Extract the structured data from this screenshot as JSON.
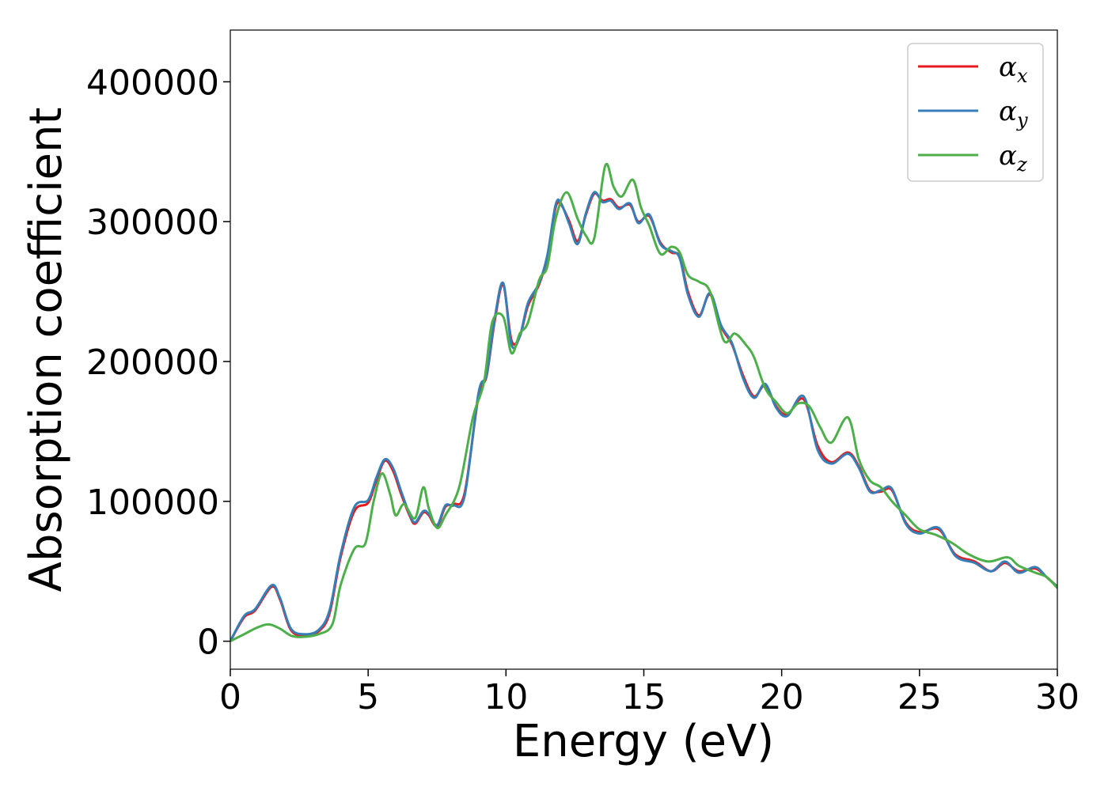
{
  "chart_data": {
    "type": "line",
    "xlabel": "Energy (eV)",
    "ylabel": "Absorption coefficient",
    "xlim": [
      0,
      30
    ],
    "ylim": [
      -20000,
      437000
    ],
    "xticks": [
      0,
      5,
      10,
      15,
      20,
      25,
      30
    ],
    "yticks": [
      0,
      100000,
      200000,
      300000,
      400000
    ],
    "grid": false,
    "legend_position": "top-right",
    "series": [
      {
        "name": "αx",
        "base": "α",
        "sub": "x",
        "color": "#e41a1c",
        "points": [
          [
            0,
            0
          ],
          [
            0.5,
            17000
          ],
          [
            0.9,
            22000
          ],
          [
            1.5,
            39000
          ],
          [
            1.8,
            30000
          ],
          [
            2.2,
            8000
          ],
          [
            2.7,
            4000
          ],
          [
            3.2,
            7000
          ],
          [
            3.6,
            20000
          ],
          [
            4.0,
            60000
          ],
          [
            4.5,
            93000
          ],
          [
            5.0,
            99000
          ],
          [
            5.3,
            115000
          ],
          [
            5.6,
            129000
          ],
          [
            5.9,
            122000
          ],
          [
            6.2,
            105000
          ],
          [
            6.5,
            90000
          ],
          [
            6.7,
            84000
          ],
          [
            7.0,
            92000
          ],
          [
            7.2,
            90000
          ],
          [
            7.5,
            82000
          ],
          [
            7.8,
            96000
          ],
          [
            8.1,
            98000
          ],
          [
            8.5,
            106000
          ],
          [
            9.0,
            175000
          ],
          [
            9.3,
            190000
          ],
          [
            9.6,
            230000
          ],
          [
            9.9,
            255000
          ],
          [
            10.2,
            215000
          ],
          [
            10.5,
            218000
          ],
          [
            10.8,
            240000
          ],
          [
            11.2,
            255000
          ],
          [
            11.5,
            275000
          ],
          [
            11.8,
            310000
          ],
          [
            12.0,
            312000
          ],
          [
            12.3,
            300000
          ],
          [
            12.6,
            286000
          ],
          [
            12.9,
            305000
          ],
          [
            13.2,
            320000
          ],
          [
            13.5,
            315000
          ],
          [
            13.8,
            316000
          ],
          [
            14.1,
            310000
          ],
          [
            14.5,
            312000
          ],
          [
            14.8,
            300000
          ],
          [
            15.2,
            304000
          ],
          [
            15.6,
            285000
          ],
          [
            16.0,
            278000
          ],
          [
            16.3,
            275000
          ],
          [
            16.6,
            250000
          ],
          [
            17.0,
            233000
          ],
          [
            17.4,
            248000
          ],
          [
            17.8,
            225000
          ],
          [
            18.2,
            212000
          ],
          [
            18.6,
            190000
          ],
          [
            19.0,
            175000
          ],
          [
            19.4,
            183000
          ],
          [
            19.8,
            168000
          ],
          [
            20.2,
            162000
          ],
          [
            20.8,
            173000
          ],
          [
            21.3,
            140000
          ],
          [
            21.8,
            128000
          ],
          [
            22.4,
            135000
          ],
          [
            22.8,
            125000
          ],
          [
            23.2,
            108000
          ],
          [
            23.6,
            107000
          ],
          [
            24.0,
            108000
          ],
          [
            24.5,
            85000
          ],
          [
            25.0,
            78000
          ],
          [
            25.7,
            80000
          ],
          [
            26.3,
            62000
          ],
          [
            27.0,
            57000
          ],
          [
            27.6,
            50000
          ],
          [
            28.1,
            56000
          ],
          [
            28.6,
            50000
          ],
          [
            29.2,
            52000
          ],
          [
            29.6,
            46000
          ],
          [
            30.0,
            39000
          ]
        ]
      },
      {
        "name": "αy",
        "base": "α",
        "sub": "y",
        "color": "#377eb8",
        "points": [
          [
            0,
            0
          ],
          [
            0.5,
            18000
          ],
          [
            0.9,
            23000
          ],
          [
            1.5,
            40000
          ],
          [
            1.8,
            31000
          ],
          [
            2.2,
            9000
          ],
          [
            2.7,
            5000
          ],
          [
            3.2,
            8000
          ],
          [
            3.6,
            22000
          ],
          [
            4.0,
            62000
          ],
          [
            4.5,
            96000
          ],
          [
            5.0,
            101000
          ],
          [
            5.3,
            117000
          ],
          [
            5.6,
            130000
          ],
          [
            5.9,
            124000
          ],
          [
            6.2,
            107000
          ],
          [
            6.5,
            91000
          ],
          [
            6.7,
            85000
          ],
          [
            7.0,
            93000
          ],
          [
            7.2,
            91000
          ],
          [
            7.5,
            83000
          ],
          [
            7.8,
            97000
          ],
          [
            8.1,
            97000
          ],
          [
            8.5,
            104000
          ],
          [
            9.0,
            177000
          ],
          [
            9.3,
            191000
          ],
          [
            9.6,
            232000
          ],
          [
            9.9,
            256000
          ],
          [
            10.2,
            212000
          ],
          [
            10.5,
            218000
          ],
          [
            10.8,
            242000
          ],
          [
            11.2,
            256000
          ],
          [
            11.5,
            276000
          ],
          [
            11.8,
            312000
          ],
          [
            12.0,
            313000
          ],
          [
            12.3,
            298000
          ],
          [
            12.6,
            284000
          ],
          [
            12.9,
            306000
          ],
          [
            13.2,
            321000
          ],
          [
            13.5,
            314000
          ],
          [
            13.8,
            315000
          ],
          [
            14.1,
            309000
          ],
          [
            14.5,
            313000
          ],
          [
            14.8,
            299000
          ],
          [
            15.2,
            305000
          ],
          [
            15.6,
            284000
          ],
          [
            16.0,
            279000
          ],
          [
            16.3,
            274000
          ],
          [
            16.6,
            248000
          ],
          [
            17.0,
            232000
          ],
          [
            17.4,
            249000
          ],
          [
            17.8,
            226000
          ],
          [
            18.2,
            213000
          ],
          [
            18.6,
            188000
          ],
          [
            19.0,
            174000
          ],
          [
            19.4,
            184000
          ],
          [
            19.8,
            167000
          ],
          [
            20.2,
            161000
          ],
          [
            20.8,
            175000
          ],
          [
            21.3,
            137000
          ],
          [
            21.8,
            127000
          ],
          [
            22.4,
            134000
          ],
          [
            22.8,
            124000
          ],
          [
            23.2,
            107000
          ],
          [
            23.6,
            108000
          ],
          [
            24.0,
            109000
          ],
          [
            24.5,
            84000
          ],
          [
            25.0,
            77000
          ],
          [
            25.7,
            81000
          ],
          [
            26.3,
            61000
          ],
          [
            27.0,
            56000
          ],
          [
            27.6,
            50000
          ],
          [
            28.1,
            57000
          ],
          [
            28.6,
            49000
          ],
          [
            29.2,
            53000
          ],
          [
            29.6,
            46000
          ],
          [
            30.0,
            39000
          ]
        ]
      },
      {
        "name": "αz",
        "base": "α",
        "sub": "z",
        "color": "#4daf4a",
        "points": [
          [
            0,
            0
          ],
          [
            0.5,
            5000
          ],
          [
            1.0,
            10000
          ],
          [
            1.4,
            12000
          ],
          [
            1.8,
            9000
          ],
          [
            2.2,
            4000
          ],
          [
            2.6,
            3000
          ],
          [
            3.2,
            5000
          ],
          [
            3.7,
            12000
          ],
          [
            4.0,
            40000
          ],
          [
            4.5,
            66000
          ],
          [
            4.9,
            70000
          ],
          [
            5.2,
            100000
          ],
          [
            5.5,
            120000
          ],
          [
            5.8,
            105000
          ],
          [
            6.0,
            90000
          ],
          [
            6.3,
            98000
          ],
          [
            6.7,
            88000
          ],
          [
            7.0,
            110000
          ],
          [
            7.2,
            95000
          ],
          [
            7.5,
            81000
          ],
          [
            7.8,
            90000
          ],
          [
            8.3,
            110000
          ],
          [
            8.8,
            160000
          ],
          [
            9.2,
            185000
          ],
          [
            9.5,
            228000
          ],
          [
            9.9,
            232000
          ],
          [
            10.2,
            206000
          ],
          [
            10.5,
            220000
          ],
          [
            10.8,
            228000
          ],
          [
            11.2,
            258000
          ],
          [
            11.5,
            268000
          ],
          [
            11.8,
            302000
          ],
          [
            12.2,
            321000
          ],
          [
            12.6,
            302000
          ],
          [
            12.9,
            290000
          ],
          [
            13.2,
            288000
          ],
          [
            13.6,
            340000
          ],
          [
            13.9,
            325000
          ],
          [
            14.2,
            318000
          ],
          [
            14.6,
            330000
          ],
          [
            14.9,
            310000
          ],
          [
            15.2,
            297000
          ],
          [
            15.6,
            277000
          ],
          [
            16.0,
            282000
          ],
          [
            16.3,
            278000
          ],
          [
            16.6,
            262000
          ],
          [
            17.0,
            257000
          ],
          [
            17.4,
            250000
          ],
          [
            17.9,
            215000
          ],
          [
            18.3,
            220000
          ],
          [
            18.7,
            212000
          ],
          [
            19.0,
            203000
          ],
          [
            19.4,
            181000
          ],
          [
            19.8,
            171000
          ],
          [
            20.2,
            163000
          ],
          [
            20.6,
            170000
          ],
          [
            21.0,
            168000
          ],
          [
            21.4,
            153000
          ],
          [
            21.8,
            142000
          ],
          [
            22.4,
            160000
          ],
          [
            22.8,
            130000
          ],
          [
            23.2,
            115000
          ],
          [
            23.6,
            110000
          ],
          [
            24.0,
            100000
          ],
          [
            24.5,
            90000
          ],
          [
            25.0,
            80000
          ],
          [
            25.6,
            76000
          ],
          [
            26.2,
            70000
          ],
          [
            26.8,
            62000
          ],
          [
            27.5,
            57000
          ],
          [
            28.2,
            60000
          ],
          [
            28.6,
            54000
          ],
          [
            29.2,
            49000
          ],
          [
            29.6,
            46000
          ],
          [
            30.0,
            38000
          ]
        ]
      }
    ]
  }
}
